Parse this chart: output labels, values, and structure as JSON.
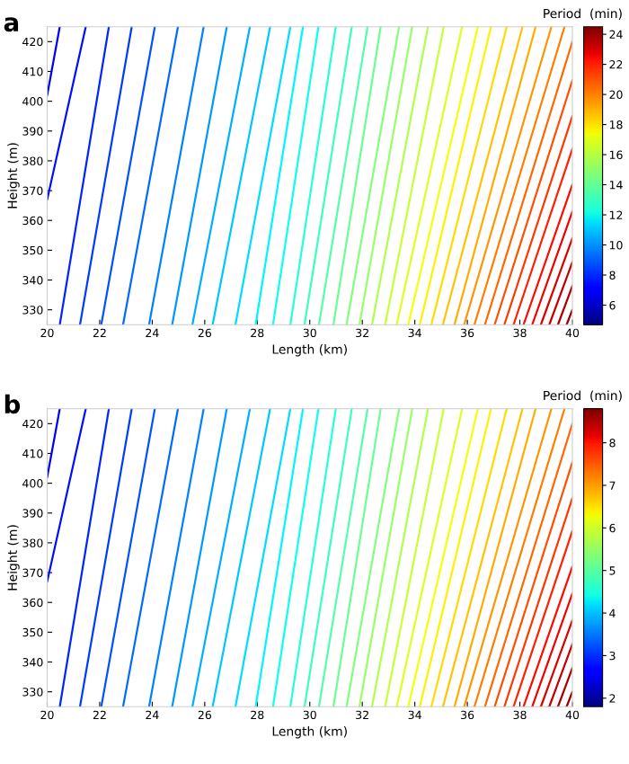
{
  "chart_data": [
    {
      "type": "line",
      "title": "a",
      "xlabel": "Length (km)",
      "ylabel": "Height (m)",
      "clabel": "Period  (min)",
      "clim": [
        4.7,
        24.5
      ],
      "cticks": [
        6,
        8,
        10,
        12,
        14,
        16,
        18,
        20,
        22,
        24
      ],
      "xlim": [
        20,
        40
      ],
      "ylim": [
        325,
        425
      ],
      "xticks": [
        20,
        22,
        24,
        26,
        28,
        30,
        32,
        34,
        36,
        38,
        40
      ],
      "yticks": [
        330,
        340,
        350,
        360,
        370,
        380,
        390,
        400,
        410,
        420
      ],
      "legend": false,
      "grid": false,
      "marker": "none",
      "line_style": "solid",
      "series": [
        {
          "color": "#0000f6",
          "x": [
            20,
            20.48
          ],
          "values": [
            402,
            425
          ]
        },
        {
          "color": "#000eff",
          "x": [
            20,
            21.47
          ],
          "values": [
            367,
            425
          ]
        },
        {
          "color": "#0025ff",
          "x": [
            20.48,
            22.35
          ],
          "values": [
            325,
            425
          ]
        },
        {
          "color": "#003cff",
          "x": [
            21.25,
            23.22
          ],
          "values": [
            325,
            425
          ]
        },
        {
          "color": "#0053ff",
          "x": [
            22.06,
            24.1
          ],
          "values": [
            325,
            425
          ]
        },
        {
          "color": "#006bff",
          "x": [
            22.89,
            24.98
          ],
          "values": [
            325,
            425
          ]
        },
        {
          "color": "#0082ff",
          "x": [
            23.88,
            25.96
          ],
          "values": [
            325,
            425
          ]
        },
        {
          "color": "#0099ff",
          "x": [
            24.76,
            26.84
          ],
          "values": [
            325,
            425
          ]
        },
        {
          "color": "#00b0ff",
          "x": [
            25.53,
            27.72
          ],
          "values": [
            325,
            425
          ]
        },
        {
          "color": "#00c7ff",
          "x": [
            26.3,
            28.49
          ],
          "values": [
            325,
            425
          ]
        },
        {
          "color": "#00deff",
          "x": [
            27.17,
            29.26
          ],
          "values": [
            325,
            425
          ]
        },
        {
          "color": "#00f6ff",
          "x": [
            27.94,
            29.74
          ],
          "values": [
            325,
            425
          ]
        },
        {
          "color": "#0efff1",
          "x": [
            28.6,
            30.33
          ],
          "values": [
            325,
            425
          ]
        },
        {
          "color": "#25ffda",
          "x": [
            29.26,
            30.99
          ],
          "values": [
            325,
            425
          ]
        },
        {
          "color": "#3cffc3",
          "x": [
            29.8,
            31.6
          ],
          "values": [
            325,
            425
          ]
        },
        {
          "color": "#53ffac",
          "x": [
            30.35,
            32.2
          ],
          "values": [
            325,
            425
          ]
        },
        {
          "color": "#6aff95",
          "x": [
            30.9,
            32.7
          ],
          "values": [
            325,
            425
          ]
        },
        {
          "color": "#82ff7d",
          "x": [
            31.4,
            33.4
          ],
          "values": [
            325,
            425
          ]
        },
        {
          "color": "#99ff66",
          "x": [
            31.89,
            33.9
          ],
          "values": [
            325,
            425
          ]
        },
        {
          "color": "#b0ff4f",
          "x": [
            32.37,
            34.5
          ],
          "values": [
            325,
            425
          ]
        },
        {
          "color": "#c7ff38",
          "x": [
            32.87,
            35.1
          ],
          "values": [
            325,
            425
          ]
        },
        {
          "color": "#deff21",
          "x": [
            33.31,
            35.8
          ],
          "values": [
            325,
            425
          ]
        },
        {
          "color": "#f5ff0a",
          "x": [
            33.75,
            36.4
          ],
          "values": [
            325,
            425
          ]
        },
        {
          "color": "#fff100",
          "x": [
            34.19,
            36.9
          ],
          "values": [
            325,
            425
          ]
        },
        {
          "color": "#ffdb00",
          "x": [
            34.63,
            37.5
          ],
          "values": [
            325,
            425
          ]
        },
        {
          "color": "#ffc300",
          "x": [
            35.07,
            38.1
          ],
          "values": [
            325,
            425
          ]
        },
        {
          "color": "#ffac00",
          "x": [
            35.51,
            38.6
          ],
          "values": [
            325,
            425
          ]
        },
        {
          "color": "#ff9500",
          "x": [
            35.88,
            39.2
          ],
          "values": [
            325,
            425
          ]
        },
        {
          "color": "#ff7e00",
          "x": [
            36.27,
            39.7
          ],
          "values": [
            325,
            425
          ]
        },
        {
          "color": "#ff6700",
          "x": [
            36.67,
            40
          ],
          "values": [
            325,
            420
          ]
        },
        {
          "color": "#ff5000",
          "x": [
            37.04,
            40
          ],
          "values": [
            325,
            407
          ]
        },
        {
          "color": "#ff3800",
          "x": [
            37.41,
            40
          ],
          "values": [
            325,
            395
          ]
        },
        {
          "color": "#ff2100",
          "x": [
            37.76,
            40
          ],
          "values": [
            325,
            384
          ]
        },
        {
          "color": "#ff0a00",
          "x": [
            38.14,
            40
          ],
          "values": [
            325,
            372
          ]
        },
        {
          "color": "#f20000",
          "x": [
            38.47,
            40
          ],
          "values": [
            325,
            363
          ]
        },
        {
          "color": "#db0000",
          "x": [
            38.8,
            40
          ],
          "values": [
            325,
            354
          ]
        },
        {
          "color": "#c40000",
          "x": [
            39.12,
            40
          ],
          "values": [
            325,
            346
          ]
        },
        {
          "color": "#ac0000",
          "x": [
            39.45,
            40
          ],
          "values": [
            325,
            338
          ]
        },
        {
          "color": "#950000",
          "x": [
            39.78,
            40
          ],
          "values": [
            325,
            330
          ]
        }
      ]
    },
    {
      "type": "line",
      "title": "b",
      "xlabel": "Length (km)",
      "ylabel": "Height (m)",
      "clabel": "Period  (min)",
      "clim": [
        1.8,
        8.8
      ],
      "cticks": [
        2,
        3,
        4,
        5,
        6,
        7,
        8
      ],
      "xlim": [
        20,
        40
      ],
      "ylim": [
        325,
        425
      ],
      "xticks": [
        20,
        22,
        24,
        26,
        28,
        30,
        32,
        34,
        36,
        38,
        40
      ],
      "yticks": [
        330,
        340,
        350,
        360,
        370,
        380,
        390,
        400,
        410,
        420
      ],
      "legend": false,
      "grid": false,
      "marker": "none",
      "line_style": "solid",
      "series": [
        {
          "color": "#0000f6",
          "x": [
            20,
            20.48
          ],
          "values": [
            402,
            425
          ]
        },
        {
          "color": "#000eff",
          "x": [
            20,
            21.47
          ],
          "values": [
            367,
            425
          ]
        },
        {
          "color": "#0025ff",
          "x": [
            20.48,
            22.35
          ],
          "values": [
            325,
            425
          ]
        },
        {
          "color": "#003cff",
          "x": [
            21.25,
            23.22
          ],
          "values": [
            325,
            425
          ]
        },
        {
          "color": "#0053ff",
          "x": [
            22.06,
            24.1
          ],
          "values": [
            325,
            425
          ]
        },
        {
          "color": "#006bff",
          "x": [
            22.89,
            24.98
          ],
          "values": [
            325,
            425
          ]
        },
        {
          "color": "#0082ff",
          "x": [
            23.88,
            25.96
          ],
          "values": [
            325,
            425
          ]
        },
        {
          "color": "#0099ff",
          "x": [
            24.76,
            26.84
          ],
          "values": [
            325,
            425
          ]
        },
        {
          "color": "#00b0ff",
          "x": [
            25.53,
            27.72
          ],
          "values": [
            325,
            425
          ]
        },
        {
          "color": "#00c7ff",
          "x": [
            26.3,
            28.49
          ],
          "values": [
            325,
            425
          ]
        },
        {
          "color": "#00deff",
          "x": [
            27.17,
            29.26
          ],
          "values": [
            325,
            425
          ]
        },
        {
          "color": "#00f6ff",
          "x": [
            27.94,
            29.74
          ],
          "values": [
            325,
            425
          ]
        },
        {
          "color": "#0efff1",
          "x": [
            28.6,
            30.33
          ],
          "values": [
            325,
            425
          ]
        },
        {
          "color": "#25ffda",
          "x": [
            29.26,
            30.99
          ],
          "values": [
            325,
            425
          ]
        },
        {
          "color": "#3cffc3",
          "x": [
            29.8,
            31.6
          ],
          "values": [
            325,
            425
          ]
        },
        {
          "color": "#53ffac",
          "x": [
            30.35,
            32.2
          ],
          "values": [
            325,
            425
          ]
        },
        {
          "color": "#6aff95",
          "x": [
            30.9,
            32.7
          ],
          "values": [
            325,
            425
          ]
        },
        {
          "color": "#82ff7d",
          "x": [
            31.4,
            33.4
          ],
          "values": [
            325,
            425
          ]
        },
        {
          "color": "#99ff66",
          "x": [
            31.89,
            33.9
          ],
          "values": [
            325,
            425
          ]
        },
        {
          "color": "#b0ff4f",
          "x": [
            32.37,
            34.5
          ],
          "values": [
            325,
            425
          ]
        },
        {
          "color": "#c7ff38",
          "x": [
            32.87,
            35.1
          ],
          "values": [
            325,
            425
          ]
        },
        {
          "color": "#deff21",
          "x": [
            33.31,
            35.8
          ],
          "values": [
            325,
            425
          ]
        },
        {
          "color": "#f5ff0a",
          "x": [
            33.75,
            36.4
          ],
          "values": [
            325,
            425
          ]
        },
        {
          "color": "#fff100",
          "x": [
            34.19,
            36.9
          ],
          "values": [
            325,
            425
          ]
        },
        {
          "color": "#ffdb00",
          "x": [
            34.63,
            37.5
          ],
          "values": [
            325,
            425
          ]
        },
        {
          "color": "#ffc300",
          "x": [
            35.07,
            38.1
          ],
          "values": [
            325,
            425
          ]
        },
        {
          "color": "#ffac00",
          "x": [
            35.51,
            38.6
          ],
          "values": [
            325,
            425
          ]
        },
        {
          "color": "#ff9500",
          "x": [
            35.88,
            39.2
          ],
          "values": [
            325,
            425
          ]
        },
        {
          "color": "#ff7e00",
          "x": [
            36.27,
            39.7
          ],
          "values": [
            325,
            425
          ]
        },
        {
          "color": "#ff6700",
          "x": [
            36.67,
            40
          ],
          "values": [
            325,
            420
          ]
        },
        {
          "color": "#ff5000",
          "x": [
            37.04,
            40
          ],
          "values": [
            325,
            407
          ]
        },
        {
          "color": "#ff3800",
          "x": [
            37.41,
            40
          ],
          "values": [
            325,
            395
          ]
        },
        {
          "color": "#ff2100",
          "x": [
            37.76,
            40
          ],
          "values": [
            325,
            384
          ]
        },
        {
          "color": "#ff0a00",
          "x": [
            38.14,
            40
          ],
          "values": [
            325,
            372
          ]
        },
        {
          "color": "#f20000",
          "x": [
            38.47,
            40
          ],
          "values": [
            325,
            363
          ]
        },
        {
          "color": "#db0000",
          "x": [
            38.8,
            40
          ],
          "values": [
            325,
            354
          ]
        },
        {
          "color": "#c40000",
          "x": [
            39.12,
            40
          ],
          "values": [
            325,
            346
          ]
        },
        {
          "color": "#ac0000",
          "x": [
            39.45,
            40
          ],
          "values": [
            325,
            338
          ]
        },
        {
          "color": "#950000",
          "x": [
            39.78,
            40
          ],
          "values": [
            325,
            330
          ]
        }
      ]
    }
  ]
}
